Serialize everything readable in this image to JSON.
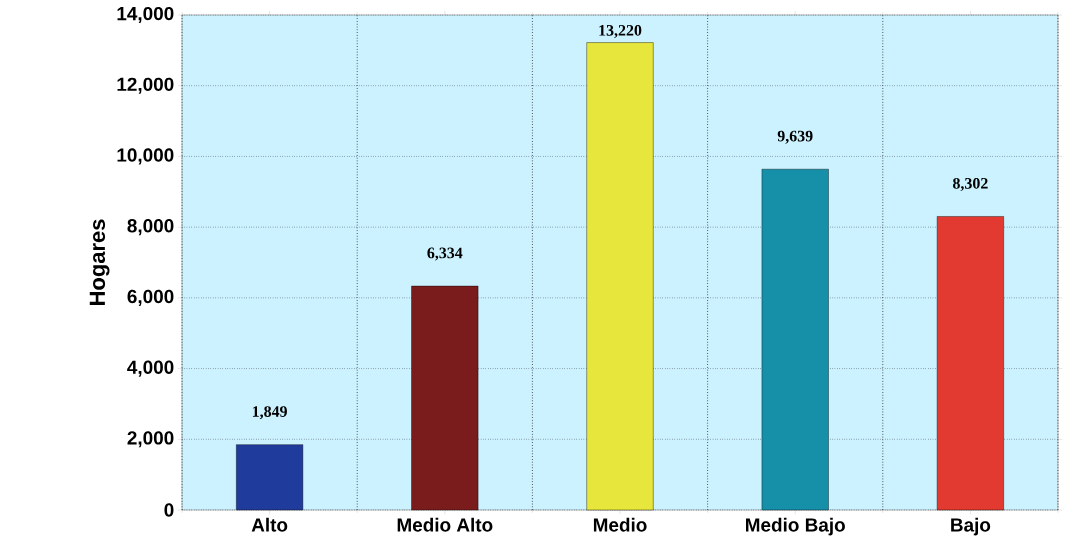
{
  "chart_data": {
    "type": "bar",
    "ylabel": "Hogares",
    "categories": [
      "Alto",
      "Medio Alto",
      "Medio",
      "Medio Bajo",
      "Bajo"
    ],
    "values": [
      1849,
      6334,
      13220,
      9639,
      8302
    ],
    "value_labels": [
      "1,849",
      "6,334",
      "13,220",
      "9,639",
      "8,302"
    ],
    "colors": [
      "#1f3c9c",
      "#7a1c1c",
      "#e6e63c",
      "#1590a8",
      "#e23a30"
    ],
    "ylim": [
      0,
      14000
    ],
    "yticks": [
      {
        "value": 0,
        "label": "0"
      },
      {
        "value": 2000,
        "label": "2,000"
      },
      {
        "value": 4000,
        "label": "4,000"
      },
      {
        "value": 6000,
        "label": "6,000"
      },
      {
        "value": 8000,
        "label": "8,000"
      },
      {
        "value": 10000,
        "label": "10,000"
      },
      {
        "value": 12000,
        "label": "12,000"
      },
      {
        "value": 14000,
        "label": "14,000"
      }
    ],
    "grid": true
  }
}
